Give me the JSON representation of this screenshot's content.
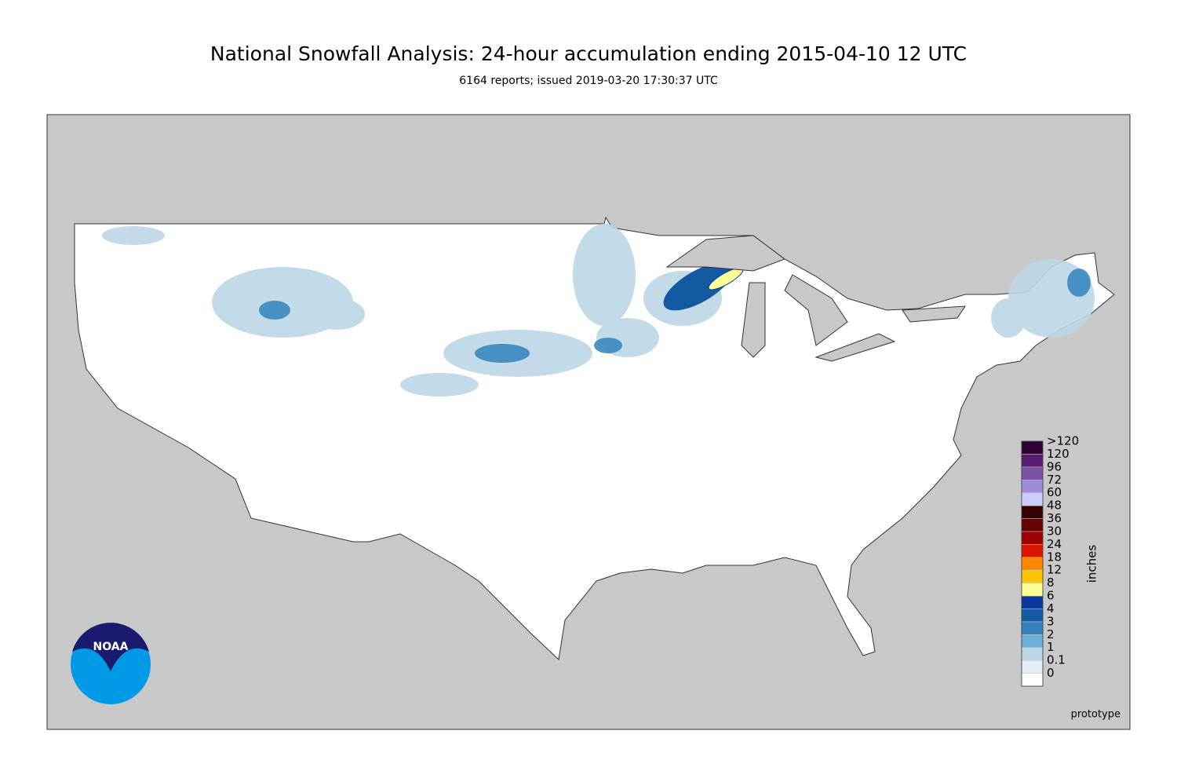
{
  "header": {
    "title": "National Snowfall Analysis: 24-hour accumulation ending 2015-04-10 12 UTC",
    "subtitle": "6164 reports; issued 2019-03-20 17:30:37 UTC"
  },
  "legend": {
    "unit": "inches",
    "bins": [
      {
        "label": "0",
        "color": "#ffffff"
      },
      {
        "label": "0.1",
        "color": "#e4ecf5"
      },
      {
        "label": "1",
        "color": "#bdd7e7"
      },
      {
        "label": "2",
        "color": "#6baed6"
      },
      {
        "label": "3",
        "color": "#3182bd"
      },
      {
        "label": "4",
        "color": "#135aa3"
      },
      {
        "label": "6",
        "color": "#08399a"
      },
      {
        "label": "8",
        "color": "#ffff96"
      },
      {
        "label": "12",
        "color": "#ffc400"
      },
      {
        "label": "18",
        "color": "#ff8700"
      },
      {
        "label": "24",
        "color": "#db1400"
      },
      {
        "label": "30",
        "color": "#9e0000"
      },
      {
        "label": "36",
        "color": "#690000"
      },
      {
        "label": "48",
        "color": "#360000"
      },
      {
        "label": "60",
        "color": "#ccccff"
      },
      {
        "label": "72",
        "color": "#9f8cd8"
      },
      {
        "label": "96",
        "color": "#7c52a5"
      },
      {
        "label": "120",
        "color": "#561c72"
      },
      {
        "label": ">120",
        "color": "#2e0033"
      }
    ]
  },
  "logo": {
    "text": "NOAA"
  },
  "footer": {
    "note": "prototype"
  }
}
